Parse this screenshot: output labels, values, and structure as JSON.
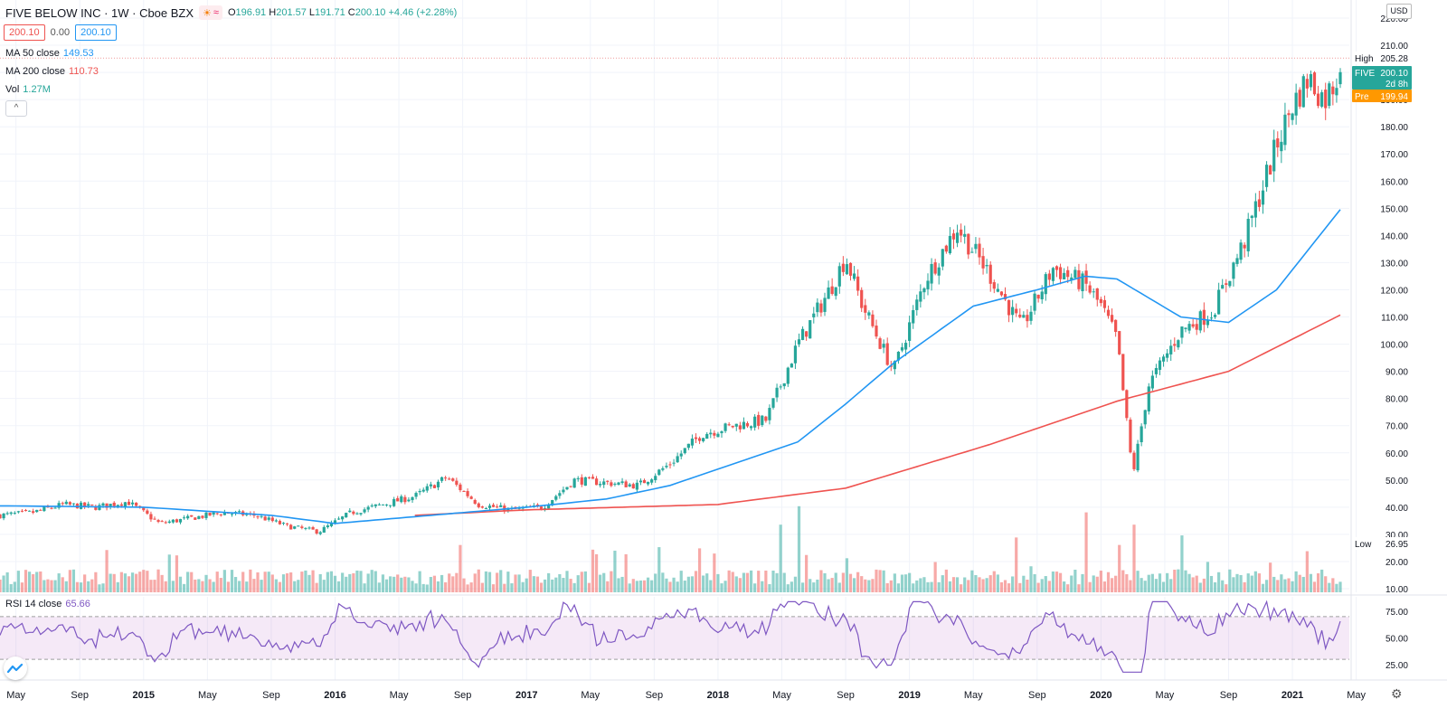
{
  "header": {
    "symbol_line": "FIVE BELOW INC · 1W · Cboe BZX",
    "open_label": "O",
    "open": "196.91",
    "high_label": "H",
    "high": "201.57",
    "low_label": "L",
    "low": "191.71",
    "close_label": "C",
    "close": "200.10",
    "change": "+4.46 (+2.28%)",
    "icon_sun": "sun-icon",
    "icon_wave": "wave-icon",
    "sun_glyph": "☀",
    "wave_glyph": "≈"
  },
  "price_boxes": {
    "bid": "200.10",
    "spread": "0.00",
    "ask": "200.10"
  },
  "indicators": {
    "ma50": {
      "label": "MA 50 close",
      "value": "149.53",
      "color": "#2196f3"
    },
    "ma200": {
      "label": "MA 200 close",
      "value": "110.73",
      "color": "#ef5350"
    },
    "vol": {
      "label": "Vol",
      "value": "1.27M",
      "color": "#26a69a"
    },
    "rsi": {
      "label": "RSI 14 close",
      "value": "65.66",
      "color": "#7e57c2"
    }
  },
  "collapse_glyph": "^",
  "currency_label": "USD",
  "gear_glyph": "⚙",
  "price_axis": {
    "ticks": [
      "220.00",
      "210.00",
      "200.00",
      "190.00",
      "180.00",
      "170.00",
      "160.00",
      "150.00",
      "140.00",
      "130.00",
      "120.00",
      "110.00",
      "100.00",
      "90.00",
      "80.00",
      "70.00",
      "60.00",
      "50.00",
      "40.00",
      "30.00",
      "20.00",
      "10.00"
    ],
    "high_tag": {
      "label": "High",
      "value": "205.28"
    },
    "last_tag": {
      "label": "FIVE",
      "value": "200.10",
      "countdown": "2d 8h",
      "color": "#26a69a"
    },
    "pre_tag": {
      "label": "Pre",
      "value": "199.94",
      "color": "#ff9800"
    },
    "low_tag": {
      "label": "Low",
      "value": "26.95"
    }
  },
  "rsi_axis": {
    "ticks": [
      "75.00",
      "50.00",
      "25.00"
    ],
    "upper_band": 70,
    "lower_band": 30
  },
  "time_axis": {
    "labels": [
      "May",
      "Sep",
      "2015",
      "May",
      "Sep",
      "2016",
      "May",
      "Sep",
      "2017",
      "May",
      "Sep",
      "2018",
      "May",
      "Sep",
      "2019",
      "May",
      "Sep",
      "2020",
      "May",
      "Sep",
      "2021",
      "May"
    ],
    "bold": [
      "2015",
      "2016",
      "2017",
      "2018",
      "2019",
      "2020",
      "2021"
    ]
  },
  "chart_data": {
    "type": "candlestick",
    "title": "FIVE BELOW INC · 1W · Cboe BZX",
    "interval": "1W",
    "start_date": "2014-04",
    "end_date": "2021-04",
    "ylim": [
      10,
      215
    ],
    "rsi_ylim": [
      15,
      85
    ],
    "anchor_closes": [
      {
        "date": "2014-04",
        "close": 37
      },
      {
        "date": "2014-06",
        "close": 38
      },
      {
        "date": "2014-08",
        "close": 41
      },
      {
        "date": "2014-10",
        "close": 40
      },
      {
        "date": "2014-12",
        "close": 42
      },
      {
        "date": "2015-02",
        "close": 34
      },
      {
        "date": "2015-04",
        "close": 36
      },
      {
        "date": "2015-06",
        "close": 38
      },
      {
        "date": "2015-08",
        "close": 37
      },
      {
        "date": "2015-10",
        "close": 33
      },
      {
        "date": "2015-12",
        "close": 31
      },
      {
        "date": "2016-02",
        "close": 38
      },
      {
        "date": "2016-04",
        "close": 41
      },
      {
        "date": "2016-06",
        "close": 44
      },
      {
        "date": "2016-08",
        "close": 51
      },
      {
        "date": "2016-10",
        "close": 41
      },
      {
        "date": "2016-12",
        "close": 39
      },
      {
        "date": "2017-02",
        "close": 40
      },
      {
        "date": "2017-04",
        "close": 50
      },
      {
        "date": "2017-06",
        "close": 49
      },
      {
        "date": "2017-08",
        "close": 48
      },
      {
        "date": "2017-10",
        "close": 56
      },
      {
        "date": "2017-12",
        "close": 67
      },
      {
        "date": "2018-02",
        "close": 70
      },
      {
        "date": "2018-04",
        "close": 72
      },
      {
        "date": "2018-06",
        "close": 100
      },
      {
        "date": "2018-08",
        "close": 120
      },
      {
        "date": "2018-09",
        "close": 132
      },
      {
        "date": "2018-10",
        "close": 115
      },
      {
        "date": "2018-12",
        "close": 90
      },
      {
        "date": "2019-02",
        "close": 124
      },
      {
        "date": "2019-04",
        "close": 143
      },
      {
        "date": "2019-06",
        "close": 126
      },
      {
        "date": "2019-08",
        "close": 106
      },
      {
        "date": "2019-10",
        "close": 128
      },
      {
        "date": "2019-12",
        "close": 122
      },
      {
        "date": "2020-01",
        "close": 114
      },
      {
        "date": "2020-02",
        "close": 102
      },
      {
        "date": "2020-03",
        "close": 52
      },
      {
        "date": "2020-04",
        "close": 85
      },
      {
        "date": "2020-06",
        "close": 105
      },
      {
        "date": "2020-08",
        "close": 112
      },
      {
        "date": "2020-10",
        "close": 138
      },
      {
        "date": "2020-12",
        "close": 173
      },
      {
        "date": "2021-01",
        "close": 188
      },
      {
        "date": "2021-02",
        "close": 198
      },
      {
        "date": "2021-03",
        "close": 190
      },
      {
        "date": "2021-04",
        "close": 200.1
      }
    ],
    "ma50_points": [
      {
        "date": "2014-04",
        "value": 40.5
      },
      {
        "date": "2015-01",
        "value": 40
      },
      {
        "date": "2015-09",
        "value": 37
      },
      {
        "date": "2016-01",
        "value": 34
      },
      {
        "date": "2016-09",
        "value": 38
      },
      {
        "date": "2017-01",
        "value": 40
      },
      {
        "date": "2017-06",
        "value": 43
      },
      {
        "date": "2017-10",
        "value": 48
      },
      {
        "date": "2018-02",
        "value": 56
      },
      {
        "date": "2018-06",
        "value": 64
      },
      {
        "date": "2018-09",
        "value": 78
      },
      {
        "date": "2018-12",
        "value": 93
      },
      {
        "date": "2019-05",
        "value": 114
      },
      {
        "date": "2019-09",
        "value": 120
      },
      {
        "date": "2019-12",
        "value": 125
      },
      {
        "date": "2020-02",
        "value": 124
      },
      {
        "date": "2020-06",
        "value": 110
      },
      {
        "date": "2020-09",
        "value": 108
      },
      {
        "date": "2020-12",
        "value": 120
      },
      {
        "date": "2021-04",
        "value": 149.53
      }
    ],
    "ma200_points": [
      {
        "date": "2016-06",
        "value": 37
      },
      {
        "date": "2017-01",
        "value": 39
      },
      {
        "date": "2018-01",
        "value": 41
      },
      {
        "date": "2018-09",
        "value": 47
      },
      {
        "date": "2019-06",
        "value": 63
      },
      {
        "date": "2020-02",
        "value": 79
      },
      {
        "date": "2020-09",
        "value": 90
      },
      {
        "date": "2021-04",
        "value": 110.73
      }
    ],
    "volume_spikes": [
      {
        "date": "2018-05",
        "volume_relative": 0.44
      },
      {
        "date": "2018-06",
        "volume_relative": 0.56
      },
      {
        "date": "2019-12",
        "volume_relative": 0.52
      },
      {
        "date": "2020-03",
        "volume_relative": 0.44
      },
      {
        "date": "2020-06",
        "volume_relative": 0.37
      }
    ]
  }
}
